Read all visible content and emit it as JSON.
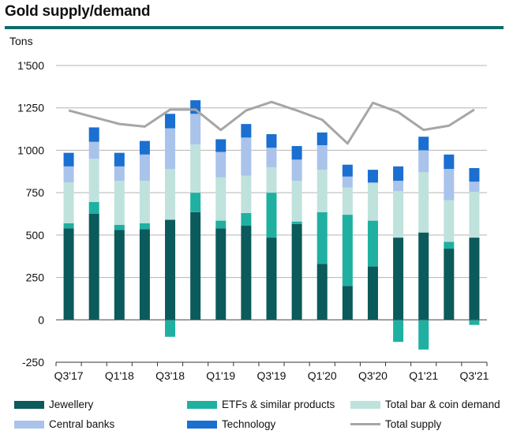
{
  "title": "Gold supply/demand",
  "chart_data": {
    "type": "bar",
    "stacked": true,
    "title": "Gold supply/demand",
    "ylabel": "Tons",
    "xlabel": "",
    "ylim": [
      -250,
      1500
    ],
    "yticks": [
      -250,
      0,
      250,
      500,
      750,
      1000,
      1250,
      1500
    ],
    "ytick_labels": [
      "-250",
      "0",
      "250",
      "500",
      "750",
      "1'000",
      "1'250",
      "1'500"
    ],
    "grid": "horizontal",
    "categories": [
      "Q3'17",
      "Q4'17",
      "Q1'18",
      "Q2'18",
      "Q3'18",
      "Q4'18",
      "Q1'19",
      "Q2'19",
      "Q3'19",
      "Q4'19",
      "Q1'20",
      "Q2'20",
      "Q3'20",
      "Q4'20",
      "Q1'21",
      "Q2'21",
      "Q3'21"
    ],
    "xtick_labels": [
      "Q3'17",
      "",
      "Q1'18",
      "",
      "Q3'18",
      "",
      "Q1'19",
      "",
      "Q3'19",
      "",
      "Q1'20",
      "",
      "Q3'20",
      "",
      "Q1'21",
      "",
      "Q3'21"
    ],
    "series": [
      {
        "name": "Jewellery",
        "color": "#0b5a5c",
        "values": [
          540,
          625,
          530,
          535,
          590,
          635,
          540,
          555,
          485,
          565,
          330,
          200,
          315,
          485,
          515,
          420,
          485
        ]
      },
      {
        "name": "ETFs & similar products",
        "color": "#1fb0a2",
        "values": [
          30,
          70,
          30,
          35,
          -100,
          115,
          45,
          75,
          265,
          15,
          305,
          420,
          270,
          -130,
          -175,
          40,
          -30
        ]
      },
      {
        "name": "Total bar & coin demand",
        "color": "#bfe2dd",
        "values": [
          240,
          255,
          260,
          250,
          300,
          285,
          255,
          220,
          150,
          240,
          250,
          160,
          220,
          275,
          355,
          245,
          270
        ]
      },
      {
        "name": "Central banks",
        "color": "#a9c3eb",
        "values": [
          95,
          100,
          85,
          155,
          240,
          180,
          150,
          225,
          115,
          125,
          145,
          65,
          5,
          60,
          130,
          185,
          60
        ]
      },
      {
        "name": "Technology",
        "color": "#1a6fd0",
        "values": [
          80,
          85,
          80,
          80,
          85,
          80,
          75,
          80,
          80,
          80,
          75,
          70,
          75,
          85,
          80,
          85,
          80
        ]
      }
    ],
    "line": {
      "name": "Total supply",
      "color": "#a6a6a6",
      "values": [
        1235,
        1195,
        1155,
        1140,
        1240,
        1240,
        1120,
        1235,
        1285,
        1235,
        1180,
        1040,
        1280,
        1225,
        1120,
        1145,
        1240
      ]
    },
    "legend_position": "bottom"
  },
  "legend": {
    "jewellery": "Jewellery",
    "etfs": "ETFs & similar products",
    "bar_coin": "Total bar & coin demand",
    "central_banks": "Central banks",
    "technology": "Technology",
    "total_supply": "Total supply"
  }
}
